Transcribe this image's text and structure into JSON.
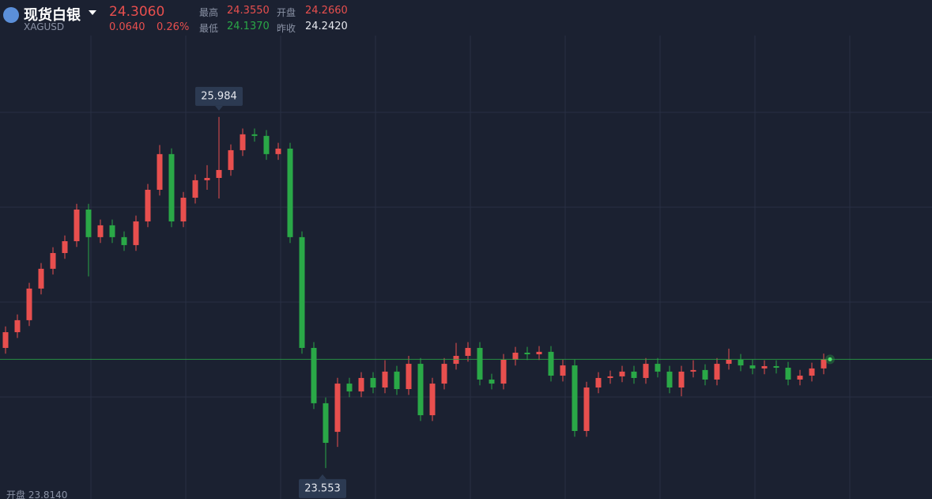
{
  "header": {
    "name": "现货白银",
    "symbol": "XAGUSD",
    "price": "24.3060",
    "change": "0.0640",
    "change_pct": "0.26%",
    "stats": [
      {
        "label": "最高",
        "value": "24.3550"
      },
      {
        "label": "开盘",
        "value": "24.2660"
      },
      {
        "label": "最低",
        "value": "24.1370"
      },
      {
        "label": "昨收",
        "value": "24.2420"
      }
    ]
  },
  "chart_data": {
    "type": "candlestick",
    "open": [
      24.385,
      24.494,
      24.577,
      24.796,
      24.933,
      25.042,
      25.124,
      25.343,
      25.152,
      25.234,
      25.152,
      25.097,
      25.261,
      25.48,
      25.727,
      25.261,
      25.425,
      25.546,
      25.562,
      25.617,
      25.754,
      25.864,
      25.853,
      25.727,
      25.765,
      25.152,
      24.385,
      24.002,
      23.804,
      24.138,
      24.084,
      24.177,
      24.111,
      24.221,
      24.1,
      24.275,
      23.919,
      24.138,
      24.275,
      24.33,
      24.385,
      24.166,
      24.138,
      24.303,
      24.352,
      24.341,
      24.358,
      24.193,
      24.264,
      23.81,
      24.111,
      24.177,
      24.188,
      24.221,
      24.177,
      24.275,
      24.221,
      24.111,
      24.221,
      24.232,
      24.166,
      24.275,
      24.303,
      24.264,
      24.243,
      24.259,
      24.248,
      24.166,
      24.193,
      24.243
    ],
    "high": [
      24.534,
      24.617,
      24.836,
      24.973,
      25.082,
      25.164,
      25.383,
      25.383,
      25.274,
      25.274,
      25.192,
      25.301,
      25.52,
      25.79,
      25.767,
      25.465,
      25.586,
      25.65,
      25.984,
      25.794,
      25.904,
      25.904,
      25.893,
      25.805,
      25.805,
      25.192,
      24.425,
      24.042,
      24.178,
      24.178,
      24.217,
      24.217,
      24.3,
      24.261,
      24.33,
      24.315,
      24.178,
      24.315,
      24.42,
      24.425,
      24.425,
      24.206,
      24.343,
      24.392,
      24.392,
      24.398,
      24.398,
      24.304,
      24.304,
      24.151,
      24.217,
      24.228,
      24.261,
      24.261,
      24.315,
      24.315,
      24.261,
      24.261,
      24.3,
      24.272,
      24.315,
      24.38,
      24.343,
      24.304,
      24.299,
      24.299,
      24.288,
      24.233,
      24.283,
      24.346
    ],
    "low": [
      24.345,
      24.454,
      24.537,
      24.756,
      24.893,
      25.002,
      25.084,
      24.88,
      25.112,
      25.112,
      25.057,
      25.057,
      25.221,
      25.44,
      25.221,
      25.221,
      25.385,
      25.48,
      25.42,
      25.577,
      25.714,
      25.813,
      25.687,
      25.687,
      25.112,
      24.345,
      23.962,
      23.553,
      23.7,
      24.044,
      24.044,
      24.071,
      24.071,
      24.06,
      24.06,
      23.879,
      23.879,
      24.098,
      24.235,
      24.29,
      24.126,
      24.098,
      24.098,
      24.263,
      24.301,
      24.301,
      24.153,
      24.153,
      23.77,
      23.77,
      24.071,
      24.137,
      24.148,
      24.137,
      24.137,
      24.181,
      24.071,
      24.05,
      24.181,
      24.126,
      24.126,
      24.235,
      24.224,
      24.203,
      24.203,
      24.208,
      24.126,
      24.126,
      24.153,
      24.203
    ],
    "close": [
      24.494,
      24.577,
      24.796,
      24.933,
      25.042,
      25.124,
      25.343,
      25.152,
      25.234,
      25.152,
      25.097,
      25.261,
      25.48,
      25.727,
      25.261,
      25.425,
      25.546,
      25.562,
      25.617,
      25.754,
      25.864,
      25.853,
      25.727,
      25.765,
      25.152,
      24.385,
      24.002,
      23.728,
      24.138,
      24.084,
      24.177,
      24.111,
      24.221,
      24.1,
      24.275,
      23.919,
      24.138,
      24.275,
      24.33,
      24.385,
      24.166,
      24.138,
      24.303,
      24.352,
      24.341,
      24.358,
      24.193,
      24.264,
      23.81,
      24.111,
      24.177,
      24.188,
      24.221,
      24.177,
      24.275,
      24.221,
      24.111,
      24.221,
      24.232,
      24.166,
      24.275,
      24.303,
      24.264,
      24.243,
      24.259,
      24.248,
      24.166,
      24.193,
      24.243,
      24.306
    ],
    "ylim": [
      23.339,
      26.794
    ],
    "up_color": "#e84f4e",
    "down_color": "#2aa847",
    "high_label": 25.984,
    "low_label": 23.553
  },
  "footer": "开盘 23.8140"
}
